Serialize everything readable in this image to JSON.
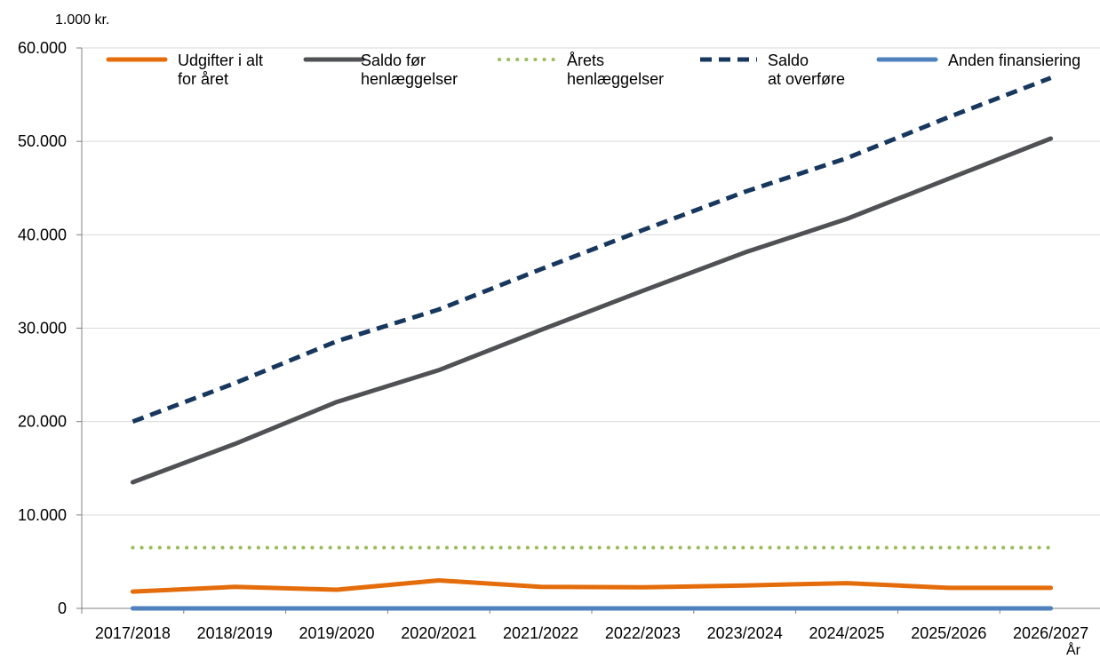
{
  "chart_data": {
    "type": "line",
    "unit_label": "1.000 kr.",
    "xlabel": "År",
    "categories": [
      "2017/2018",
      "2018/2019",
      "2019/2020",
      "2020/2021",
      "2021/2022",
      "2022/2023",
      "2023/2024",
      "2024/2025",
      "2025/2026",
      "2026/2027"
    ],
    "ylim": [
      0,
      60000
    ],
    "yticks": [
      0,
      10000,
      20000,
      30000,
      40000,
      50000,
      60000
    ],
    "ytick_labels": [
      "0",
      "10.000",
      "20.000",
      "30.000",
      "40.000",
      "50.000",
      "60.000"
    ],
    "grid": true,
    "legend_position": "top",
    "series": [
      {
        "name_lines": [
          "Udgifter i alt",
          "for året"
        ],
        "color": "#E46C0A",
        "style": "solid",
        "values": [
          1800,
          2300,
          2000,
          3000,
          2300,
          2250,
          2450,
          2700,
          2200,
          2200
        ]
      },
      {
        "name_lines": [
          "Saldo før",
          "henlæggelser"
        ],
        "color": "#505155",
        "style": "solid",
        "values": [
          13500,
          17600,
          22100,
          25500,
          29800,
          34000,
          38100,
          41700,
          46000,
          50300
        ]
      },
      {
        "name_lines": [
          "Årets",
          "henlæggelser"
        ],
        "color": "#9BBB59",
        "style": "dotted",
        "values": [
          6500,
          6500,
          6500,
          6500,
          6500,
          6500,
          6500,
          6500,
          6500,
          6500
        ]
      },
      {
        "name_lines": [
          "Saldo",
          "at overføre"
        ],
        "color": "#17375E",
        "style": "dashed",
        "values": [
          20000,
          24100,
          28600,
          32000,
          36300,
          40500,
          44600,
          48200,
          52600,
          56800
        ]
      },
      {
        "name_lines": [
          "Anden finansiering"
        ],
        "color": "#4F81BD",
        "style": "solid",
        "values": [
          0,
          0,
          0,
          0,
          0,
          0,
          0,
          0,
          0,
          0
        ]
      }
    ]
  }
}
